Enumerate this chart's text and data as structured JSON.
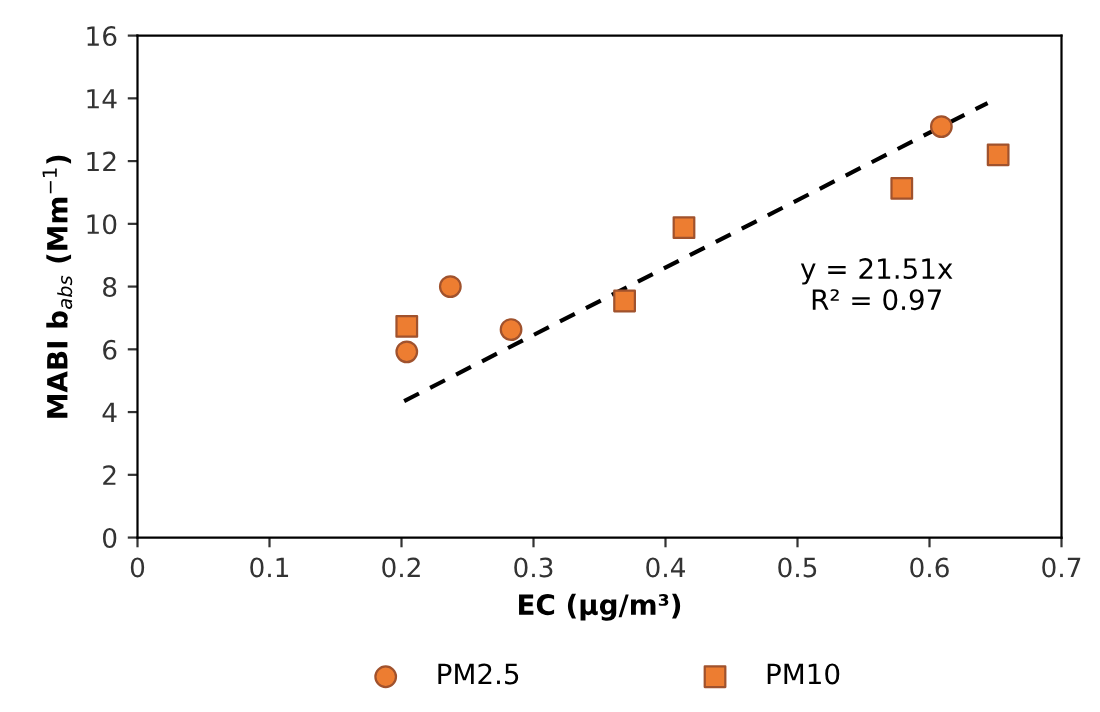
{
  "chart_data": {
    "type": "scatter",
    "xlabel": "EC (µg/m³)",
    "ylabel": "MABI b$_{abs}$ (Mm$^{−1}$)",
    "series": [
      {
        "name": "PM2.5",
        "color": "#ed7d31",
        "marker": "circle",
        "x": [
          0.204,
          0.237,
          0.283,
          0.609
        ],
        "values": [
          5.92,
          8.0,
          6.63,
          13.1
        ]
      },
      {
        "name": "PM10",
        "color": "#ed7d31",
        "marker": "square",
        "x": [
          0.204,
          0.369,
          0.414,
          0.579,
          0.652
        ],
        "values": [
          6.73,
          7.54,
          9.88,
          11.13,
          12.2
        ]
      },
      {
        "type": "line",
        "color": "#000000",
        "line_style": "dashed",
        "marker": "none",
        "x": [
          0.202,
          0.644
        ],
        "values": [
          4.35,
          13.85
        ]
      }
    ],
    "annotations": [
      "y = 21.51x\nR² = 0.97"
    ],
    "xlim": [
      0,
      0.7
    ],
    "xticks": [
      0,
      0.1,
      0.2,
      0.3,
      0.4,
      0.5,
      0.6,
      0.7
    ],
    "ylim": [
      0,
      16
    ],
    "yticks": [
      0,
      2,
      4,
      6,
      8,
      10,
      12,
      14,
      16
    ],
    "grid": false,
    "legend": "bottom"
  }
}
